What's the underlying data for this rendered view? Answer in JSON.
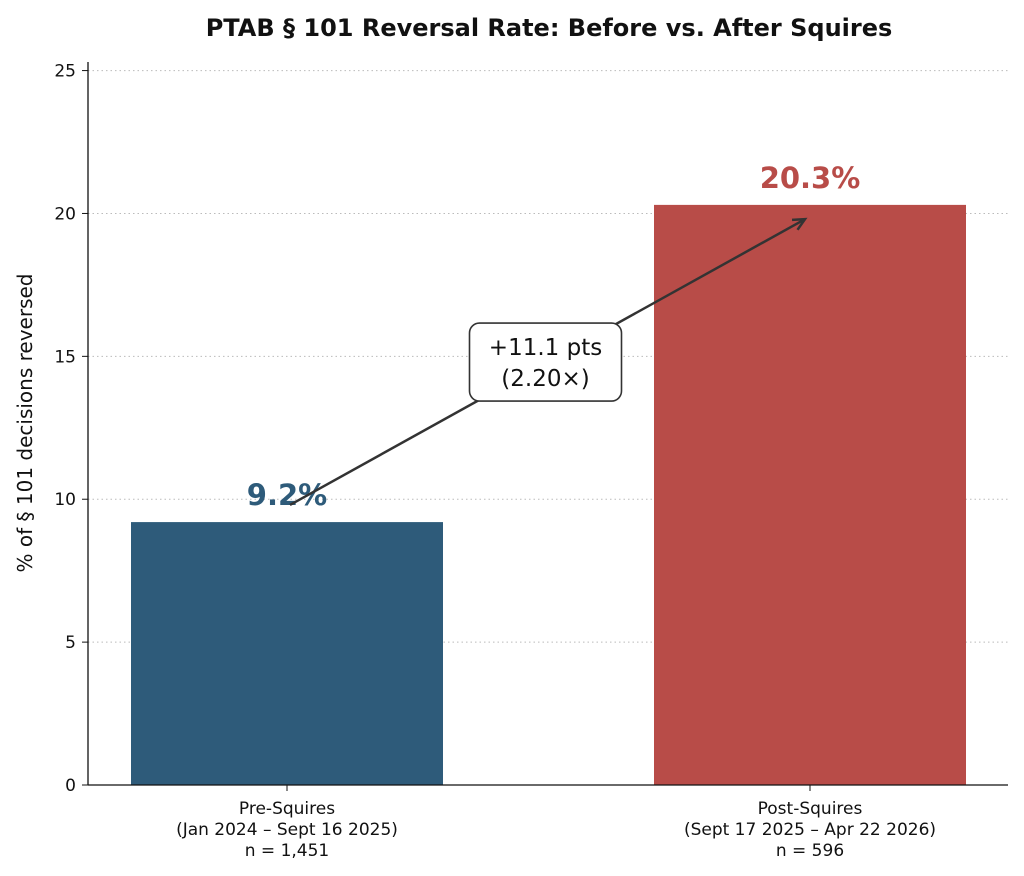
{
  "chart_data": {
    "type": "bar",
    "title": "PTAB § 101 Reversal Rate: Before vs. After Squires",
    "xlabel": "",
    "ylabel": "% of § 101 decisions reversed",
    "ylim": [
      0,
      25.3
    ],
    "yticks": [
      0,
      5,
      10,
      15,
      20,
      25
    ],
    "grid": "horizontal dotted",
    "categories": [
      [
        "Pre-Squires",
        "(Jan 2024 – Sept 16 2025)",
        "n = 1,451"
      ],
      [
        "Post-Squires",
        "(Sept 17 2025 – Apr 22 2026)",
        "n = 596"
      ]
    ],
    "values": [
      9.2,
      20.3
    ],
    "data_labels": [
      "9.2%",
      "20.3%"
    ],
    "colors": [
      "#2e5b7a",
      "#b84c48"
    ],
    "annotation": {
      "lines": [
        "+11.1 pts",
        "(2.20×)"
      ],
      "arrow_from": [
        0,
        9.8
      ],
      "arrow_to": [
        1,
        19.8
      ]
    }
  }
}
